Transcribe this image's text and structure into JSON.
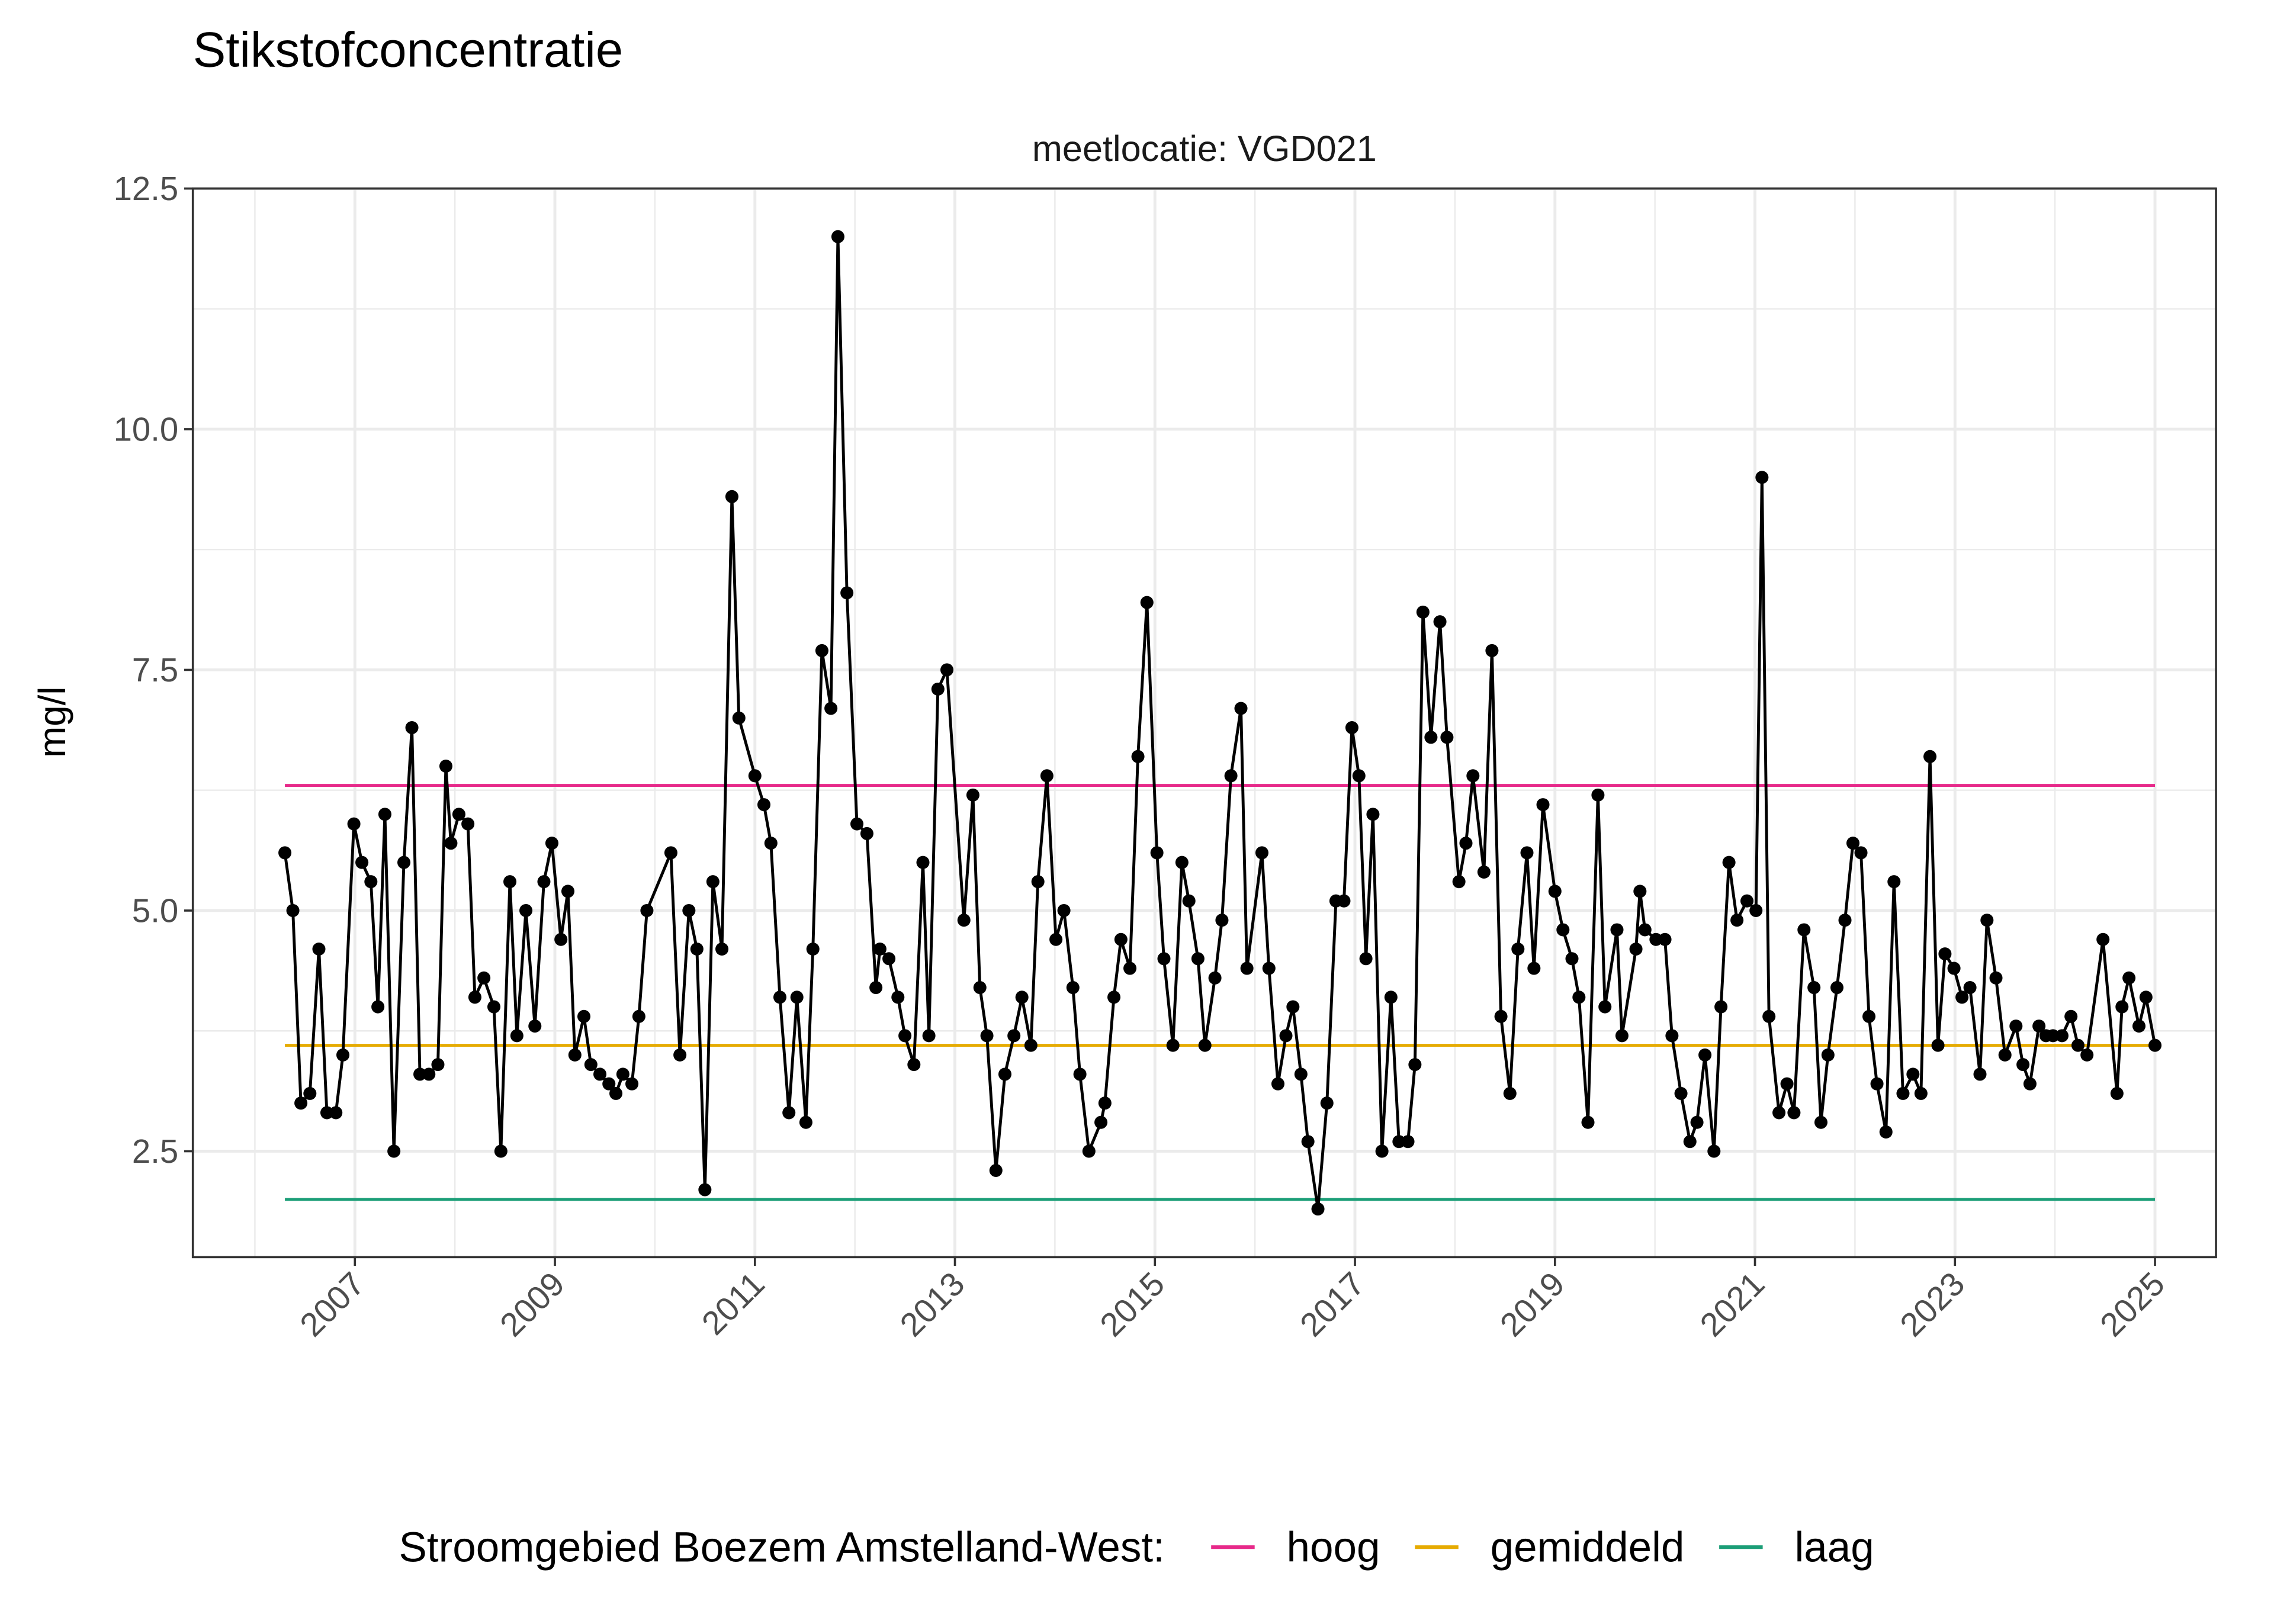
{
  "chart_data": {
    "type": "line",
    "title": "Stikstofconcentratie",
    "subtitle": "meetlocatie: VGD021",
    "y_label": "mg/l",
    "legend_title": "Stroomgebied Boezem Amstelland-West:",
    "legend_position": "bottom",
    "grid": true,
    "xlim": [
      2005.38,
      2025.61
    ],
    "xticks": [
      2007,
      2009,
      2011,
      2013,
      2015,
      2017,
      2019,
      2021,
      2023,
      2025
    ],
    "ylim": [
      1.4,
      12.5
    ],
    "yticks": [
      2.5,
      {
        "value": 5,
        "label": "5.0"
      },
      7.5,
      {
        "value": 10,
        "label": "10.0"
      },
      12.5
    ],
    "reference_lines": [
      {
        "name": "hoog",
        "color": "#e7298a",
        "value": 6.3
      },
      {
        "name": "gemiddeld",
        "color": "#e6ab02",
        "value": 3.6
      },
      {
        "name": "laag",
        "color": "#1b9e77",
        "value": 2.0
      }
    ],
    "series": [
      {
        "color": "#000000",
        "x": [
          2006.3,
          2006.38,
          2006.46,
          2006.55,
          2006.64,
          2006.72,
          2006.81,
          2006.88,
          2006.99,
          2007.07,
          2007.16,
          2007.23,
          2007.3,
          2007.39,
          2007.49,
          2007.57,
          2007.65,
          2007.74,
          2007.83,
          2007.91,
          2007.96,
          2008.04,
          2008.13,
          2008.2,
          2008.29,
          2008.39,
          2008.46,
          2008.55,
          2008.62,
          2008.71,
          2008.8,
          2008.89,
          2008.97,
          2009.06,
          2009.13,
          2009.2,
          2009.29,
          2009.36,
          2009.45,
          2009.54,
          2009.61,
          2009.68,
          2009.77,
          2009.84,
          2009.92,
          2010.16,
          2010.25,
          2010.34,
          2010.42,
          2010.5,
          2010.58,
          2010.67,
          2010.77,
          2010.84,
          2011.0,
          2011.09,
          2011.16,
          2011.25,
          2011.34,
          2011.42,
          2011.51,
          2011.58,
          2011.67,
          2011.76,
          2011.83,
          2011.92,
          2012.02,
          2012.12,
          2012.21,
          2012.25,
          2012.34,
          2012.43,
          2012.5,
          2012.59,
          2012.68,
          2012.74,
          2012.83,
          2012.92,
          2013.09,
          2013.18,
          2013.25,
          2013.32,
          2013.41,
          2013.5,
          2013.59,
          2013.67,
          2013.76,
          2013.83,
          2013.92,
          2014.01,
          2014.09,
          2014.18,
          2014.25,
          2014.34,
          2014.46,
          2014.5,
          2014.59,
          2014.66,
          2014.75,
          2014.83,
          2014.92,
          2015.02,
          2015.09,
          2015.18,
          2015.27,
          2015.34,
          2015.43,
          2015.5,
          2015.6,
          2015.67,
          2015.76,
          2015.86,
          2015.92,
          2016.07,
          2016.14,
          2016.23,
          2016.31,
          2016.38,
          2016.46,
          2016.53,
          2016.63,
          2016.72,
          2016.81,
          2016.89,
          2016.97,
          2017.04,
          2017.11,
          2017.18,
          2017.27,
          2017.36,
          2017.44,
          2017.53,
          2017.6,
          2017.68,
          2017.76,
          2017.85,
          2017.92,
          2018.04,
          2018.11,
          2018.18,
          2018.29,
          2018.37,
          2018.46,
          2018.55,
          2018.63,
          2018.72,
          2018.79,
          2018.88,
          2019.0,
          2019.08,
          2019.17,
          2019.24,
          2019.33,
          2019.43,
          2019.5,
          2019.62,
          2019.67,
          2019.81,
          2019.85,
          2019.9,
          2020.01,
          2020.1,
          2020.17,
          2020.26,
          2020.35,
          2020.42,
          2020.5,
          2020.59,
          2020.66,
          2020.74,
          2020.82,
          2020.92,
          2021.01,
          2021.07,
          2021.14,
          2021.24,
          2021.32,
          2021.39,
          2021.49,
          2021.59,
          2021.66,
          2021.73,
          2021.82,
          2021.9,
          2021.98,
          2022.06,
          2022.14,
          2022.22,
          2022.31,
          2022.39,
          2022.48,
          2022.58,
          2022.66,
          2022.75,
          2022.83,
          2022.9,
          2022.99,
          2023.07,
          2023.15,
          2023.25,
          2023.32,
          2023.41,
          2023.5,
          2023.61,
          2023.68,
          2023.75,
          2023.84,
          2023.91,
          2023.98,
          2024.07,
          2024.16,
          2024.23,
          2024.32,
          2024.48,
          2024.62,
          2024.67,
          2024.74,
          2024.84,
          2024.91,
          2025.0
        ],
        "values": [
          5.6,
          5.0,
          3.0,
          3.1,
          4.6,
          2.9,
          2.9,
          3.5,
          5.9,
          5.5,
          5.3,
          4.0,
          6.0,
          2.5,
          5.5,
          6.9,
          3.3,
          3.3,
          3.4,
          6.5,
          5.7,
          6.0,
          5.9,
          4.1,
          4.3,
          4.0,
          2.5,
          5.3,
          3.7,
          5.0,
          3.8,
          5.3,
          5.7,
          4.7,
          5.2,
          3.5,
          3.9,
          3.4,
          3.3,
          3.2,
          3.1,
          3.3,
          3.2,
          3.9,
          5.0,
          5.6,
          3.5,
          5.0,
          4.6,
          2.1,
          5.3,
          4.6,
          9.3,
          7.0,
          6.4,
          6.1,
          5.7,
          4.1,
          2.9,
          4.1,
          2.8,
          4.6,
          7.7,
          7.1,
          12.0,
          8.3,
          5.9,
          5.8,
          4.2,
          4.6,
          4.5,
          4.1,
          3.7,
          3.4,
          5.5,
          3.7,
          7.3,
          7.5,
          4.9,
          6.2,
          4.2,
          3.7,
          2.3,
          3.3,
          3.7,
          4.1,
          3.6,
          5.3,
          6.4,
          4.7,
          5.0,
          4.2,
          3.3,
          2.5,
          2.8,
          3.0,
          4.1,
          4.7,
          4.4,
          6.6,
          8.2,
          5.6,
          4.5,
          3.6,
          5.5,
          5.1,
          4.5,
          3.6,
          4.3,
          4.9,
          6.4,
          7.1,
          4.4,
          5.6,
          4.4,
          3.2,
          3.7,
          4.0,
          3.3,
          2.6,
          1.9,
          3.0,
          5.1,
          5.1,
          6.9,
          6.4,
          4.5,
          6.0,
          2.5,
          4.1,
          2.6,
          2.6,
          3.4,
          8.1,
          6.8,
          8.0,
          6.8,
          5.3,
          5.7,
          6.4,
          5.4,
          7.7,
          3.9,
          3.1,
          4.6,
          5.6,
          4.4,
          6.1,
          5.2,
          4.8,
          4.5,
          4.1,
          2.8,
          6.2,
          4.0,
          4.8,
          3.7,
          4.6,
          5.2,
          4.8,
          4.7,
          4.7,
          3.7,
          3.1,
          2.6,
          2.8,
          3.5,
          2.5,
          4.0,
          5.5,
          4.9,
          5.1,
          5.0,
          9.5,
          3.9,
          2.9,
          3.2,
          2.9,
          4.8,
          4.2,
          2.8,
          3.5,
          4.2,
          4.9,
          5.7,
          5.6,
          3.9,
          3.2,
          2.7,
          5.3,
          3.1,
          3.3,
          3.1,
          6.6,
          3.6,
          4.55,
          4.4,
          4.1,
          4.2,
          3.3,
          4.9,
          4.3,
          3.5,
          3.8,
          3.4,
          3.2,
          3.8,
          3.7,
          3.7,
          3.7,
          3.9,
          3.6,
          3.5,
          4.7,
          3.1,
          4.0,
          4.3,
          3.8,
          4.1,
          3.6
        ]
      }
    ]
  }
}
